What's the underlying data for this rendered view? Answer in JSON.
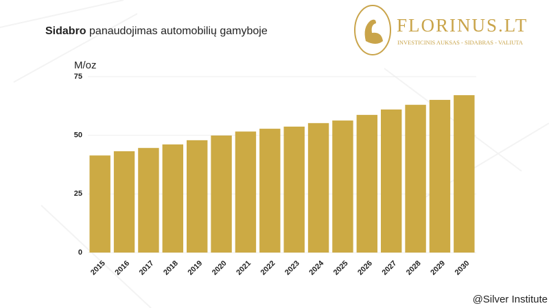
{
  "chart_data": {
    "type": "bar",
    "title_bold": "Sidabro",
    "title": "panaudojimas automobilių gamyboje",
    "y_label": "M/oz",
    "categories": [
      "2015",
      "2016",
      "2017",
      "2018",
      "2019",
      "2020",
      "2021",
      "2022",
      "2023",
      "2024",
      "2025",
      "2026",
      "2027",
      "2028",
      "2029",
      "2030"
    ],
    "values": [
      41.4,
      43.2,
      44.6,
      46.1,
      47.9,
      49.9,
      51.6,
      52.8,
      53.7,
      55.2,
      56.3,
      58.7,
      61,
      63,
      65.1,
      67.1
    ],
    "color": "#ccaa44",
    "ylim": [
      0,
      75
    ],
    "yticks": [
      0,
      25,
      50,
      75
    ],
    "grid": true
  },
  "logo": {
    "name": "FLORINUS.LT",
    "tagline": "INVESTICINIS AUKSAS - SIDABRAS - VALIUTA"
  },
  "source": "@Silver Institute"
}
